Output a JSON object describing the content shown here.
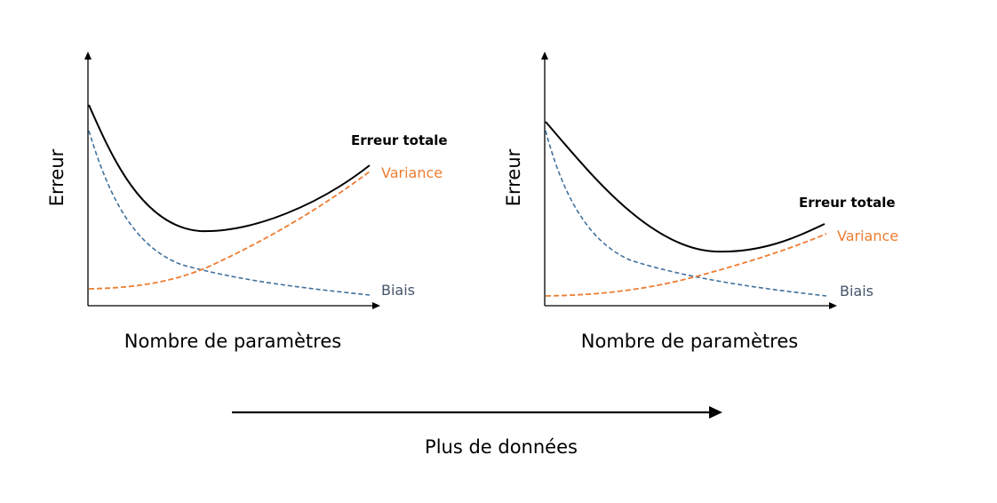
{
  "colors": {
    "total": "#000000",
    "variance": "#ED7D31",
    "bias": "#41719C",
    "bias_label": "#44546A",
    "axis": "#000000"
  },
  "panels": [
    {
      "y_axis_label": "Erreur",
      "x_axis_label": "Nombre de paramètres",
      "total_label": "Erreur totale",
      "variance_label": "Variance",
      "bias_label": "Biais"
    },
    {
      "y_axis_label": "Erreur",
      "x_axis_label": "Nombre de paramètres",
      "total_label": "Erreur totale",
      "variance_label": "Variance",
      "bias_label": "Biais"
    }
  ],
  "bottom_arrow": {
    "label": "Plus de données"
  }
}
